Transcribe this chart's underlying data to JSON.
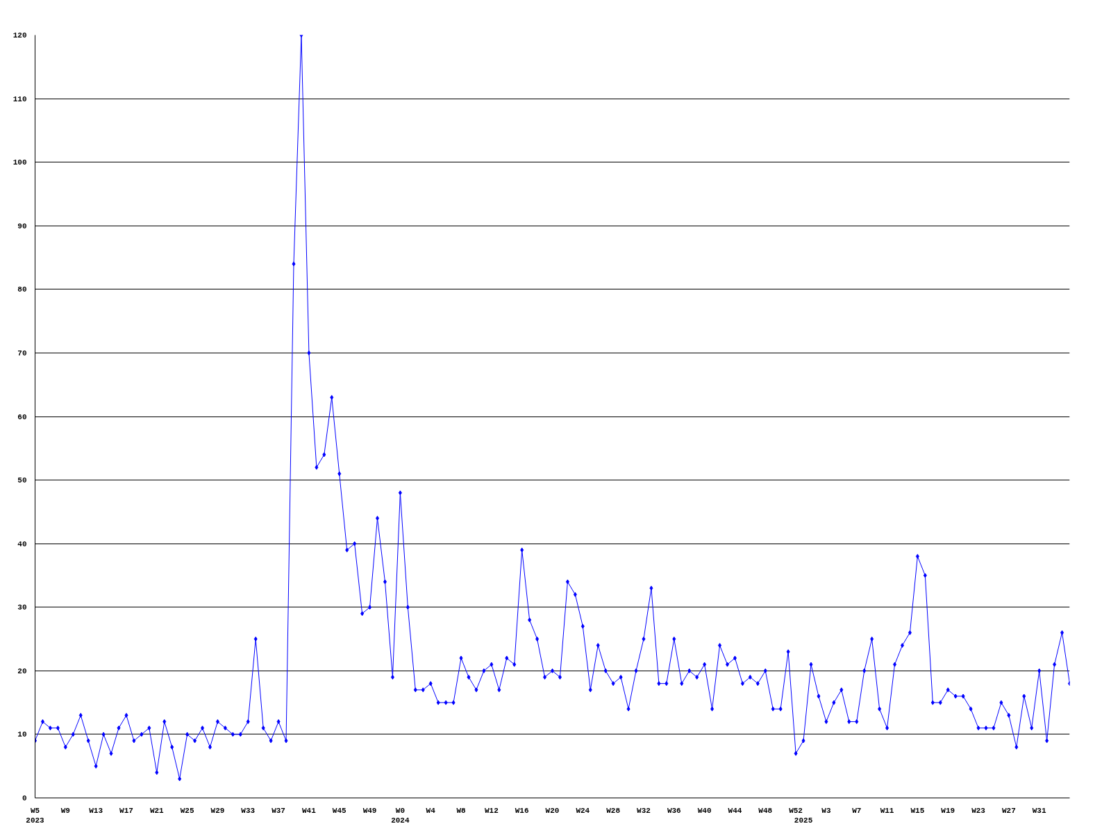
{
  "chart_data": {
    "type": "line",
    "categories": [
      "W5\n2023",
      null,
      null,
      null,
      "W9",
      null,
      null,
      null,
      "W13",
      null,
      null,
      null,
      "W17",
      null,
      null,
      null,
      "W21",
      null,
      null,
      null,
      "W25",
      null,
      null,
      null,
      "W29",
      null,
      null,
      null,
      "W33",
      null,
      null,
      null,
      "W37",
      null,
      null,
      null,
      "W41",
      null,
      null,
      null,
      "W45",
      null,
      null,
      null,
      "W49",
      null,
      null,
      null,
      "W0\n2024",
      null,
      null,
      null,
      "W4",
      null,
      null,
      null,
      "W8",
      null,
      null,
      null,
      "W12",
      null,
      null,
      null,
      "W16",
      null,
      null,
      null,
      "W20",
      null,
      null,
      null,
      "W24",
      null,
      null,
      null,
      "W28",
      null,
      null,
      null,
      "W32",
      null,
      null,
      null,
      "W36",
      null,
      null,
      null,
      "W40",
      null,
      null,
      null,
      "W44",
      null,
      null,
      null,
      "W48",
      null,
      null,
      null,
      "W52",
      "\n2025",
      null,
      null,
      "W3",
      null,
      null,
      null,
      "W7",
      null,
      null,
      null,
      "W11",
      null,
      null,
      null,
      "W15",
      null,
      null,
      null,
      "W19",
      null,
      null,
      null,
      "W23",
      null,
      null,
      null,
      "W27",
      null,
      null,
      null,
      "W31",
      null,
      null,
      null,
      null
    ],
    "series": [
      {
        "color": "#0000ff",
        "values": [
          9,
          12,
          11,
          11,
          8,
          10,
          13,
          9,
          5,
          10,
          7,
          11,
          13,
          9,
          10,
          11,
          4,
          12,
          8,
          3,
          10,
          9,
          11,
          8,
          12,
          11,
          10,
          10,
          12,
          25,
          11,
          9,
          12,
          9,
          84,
          120,
          70,
          52,
          54,
          63,
          51,
          39,
          40,
          29,
          30,
          44,
          34,
          19,
          48,
          30,
          17,
          17,
          18,
          15,
          15,
          15,
          22,
          19,
          17,
          20,
          21,
          17,
          22,
          21,
          39,
          28,
          25,
          19,
          20,
          19,
          34,
          32,
          27,
          17,
          24,
          20,
          18,
          19,
          14,
          20,
          25,
          33,
          18,
          18,
          25,
          18,
          20,
          19,
          21,
          14,
          24,
          21,
          22,
          18,
          19,
          18,
          20,
          14,
          14,
          23,
          7,
          9,
          21,
          16,
          12,
          15,
          17,
          12,
          12,
          20,
          25,
          14,
          11,
          21,
          24,
          26,
          38,
          35,
          15,
          15,
          17,
          16,
          16,
          14,
          11,
          11,
          11,
          15,
          13,
          8,
          16,
          11,
          20,
          9,
          21,
          26,
          18
        ]
      }
    ],
    "ylim": [
      0,
      120
    ],
    "yticks": [
      0,
      10,
      20,
      30,
      40,
      50,
      60,
      70,
      80,
      90,
      100,
      110,
      120
    ],
    "grid": "y",
    "marker": "diamond",
    "line_style": "solid"
  }
}
